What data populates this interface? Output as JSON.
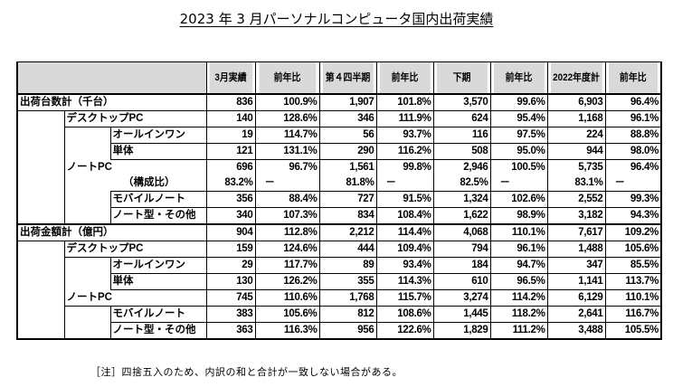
{
  "title": "2023 年 3 月パーソナルコンピュータ国内出荷実績",
  "table": {
    "headers": [
      "",
      "3月実績",
      "前年比",
      "第４四半期",
      "前年比",
      "下期",
      "前年比",
      "2022年度計",
      "前年比"
    ],
    "sections": [
      {
        "label": "出荷台数計（千台）",
        "rows": [
          {
            "level": 0,
            "label": "出荷台数計（千台）",
            "values": [
              "836",
              "100.9%",
              "1,907",
              "101.8%",
              "3,570",
              "99.6%",
              "6,903",
              "96.4%"
            ]
          },
          {
            "level": 1,
            "label": "デスクトップPC",
            "values": [
              "140",
              "128.6%",
              "346",
              "111.9%",
              "624",
              "95.4%",
              "1,168",
              "96.1%"
            ]
          },
          {
            "level": 2,
            "label": "オールインワン",
            "values": [
              "19",
              "114.7%",
              "56",
              "93.7%",
              "116",
              "97.5%",
              "224",
              "88.8%"
            ]
          },
          {
            "level": 2,
            "label": "単体",
            "values": [
              "121",
              "131.1%",
              "290",
              "116.2%",
              "508",
              "95.0%",
              "944",
              "98.0%"
            ]
          },
          {
            "level": 1,
            "label": "ノートPC",
            "values": [
              "696",
              "96.7%",
              "1,561",
              "99.8%",
              "2,946",
              "100.5%",
              "5,735",
              "96.4%"
            ]
          },
          {
            "level": 2,
            "label": "（構成比）",
            "values": [
              "83.2%",
              "－",
              "81.8%",
              "－",
              "82.5%",
              "－",
              "83.1%",
              "－"
            ]
          },
          {
            "level": 2,
            "label": "モバイルノート",
            "values": [
              "356",
              "88.4%",
              "727",
              "91.5%",
              "1,324",
              "102.6%",
              "2,552",
              "99.3%"
            ]
          },
          {
            "level": 2,
            "label": "ノート型・その他",
            "values": [
              "340",
              "107.3%",
              "834",
              "108.4%",
              "1,622",
              "98.9%",
              "3,182",
              "94.3%"
            ]
          }
        ]
      },
      {
        "label": "出荷金額計（億円）",
        "rows": [
          {
            "level": 0,
            "label": "出荷金額計（億円）",
            "values": [
              "904",
              "112.8%",
              "2,212",
              "114.4%",
              "4,068",
              "110.1%",
              "7,617",
              "109.2%"
            ]
          },
          {
            "level": 1,
            "label": "デスクトップPC",
            "values": [
              "159",
              "124.6%",
              "444",
              "109.4%",
              "794",
              "96.1%",
              "1,488",
              "105.6%"
            ]
          },
          {
            "level": 2,
            "label": "オールインワン",
            "values": [
              "29",
              "117.7%",
              "89",
              "93.4%",
              "184",
              "94.7%",
              "347",
              "85.5%"
            ]
          },
          {
            "level": 2,
            "label": "単体",
            "values": [
              "130",
              "126.2%",
              "355",
              "114.3%",
              "610",
              "96.5%",
              "1,141",
              "113.7%"
            ]
          },
          {
            "level": 1,
            "label": "ノートPC",
            "values": [
              "745",
              "110.6%",
              "1,768",
              "115.7%",
              "3,274",
              "114.2%",
              "6,129",
              "110.1%"
            ]
          },
          {
            "level": 2,
            "label": "モバイルノート",
            "values": [
              "383",
              "105.6%",
              "812",
              "108.6%",
              "1,445",
              "118.2%",
              "2,641",
              "116.7%"
            ]
          },
          {
            "level": 2,
            "label": "ノート型・その他",
            "values": [
              "363",
              "116.3%",
              "956",
              "122.6%",
              "1,829",
              "111.2%",
              "3,488",
              "105.5%"
            ]
          }
        ]
      }
    ]
  },
  "note": "［注］四捨五入のため、内訳の和と合計が一致しない場合がある。"
}
